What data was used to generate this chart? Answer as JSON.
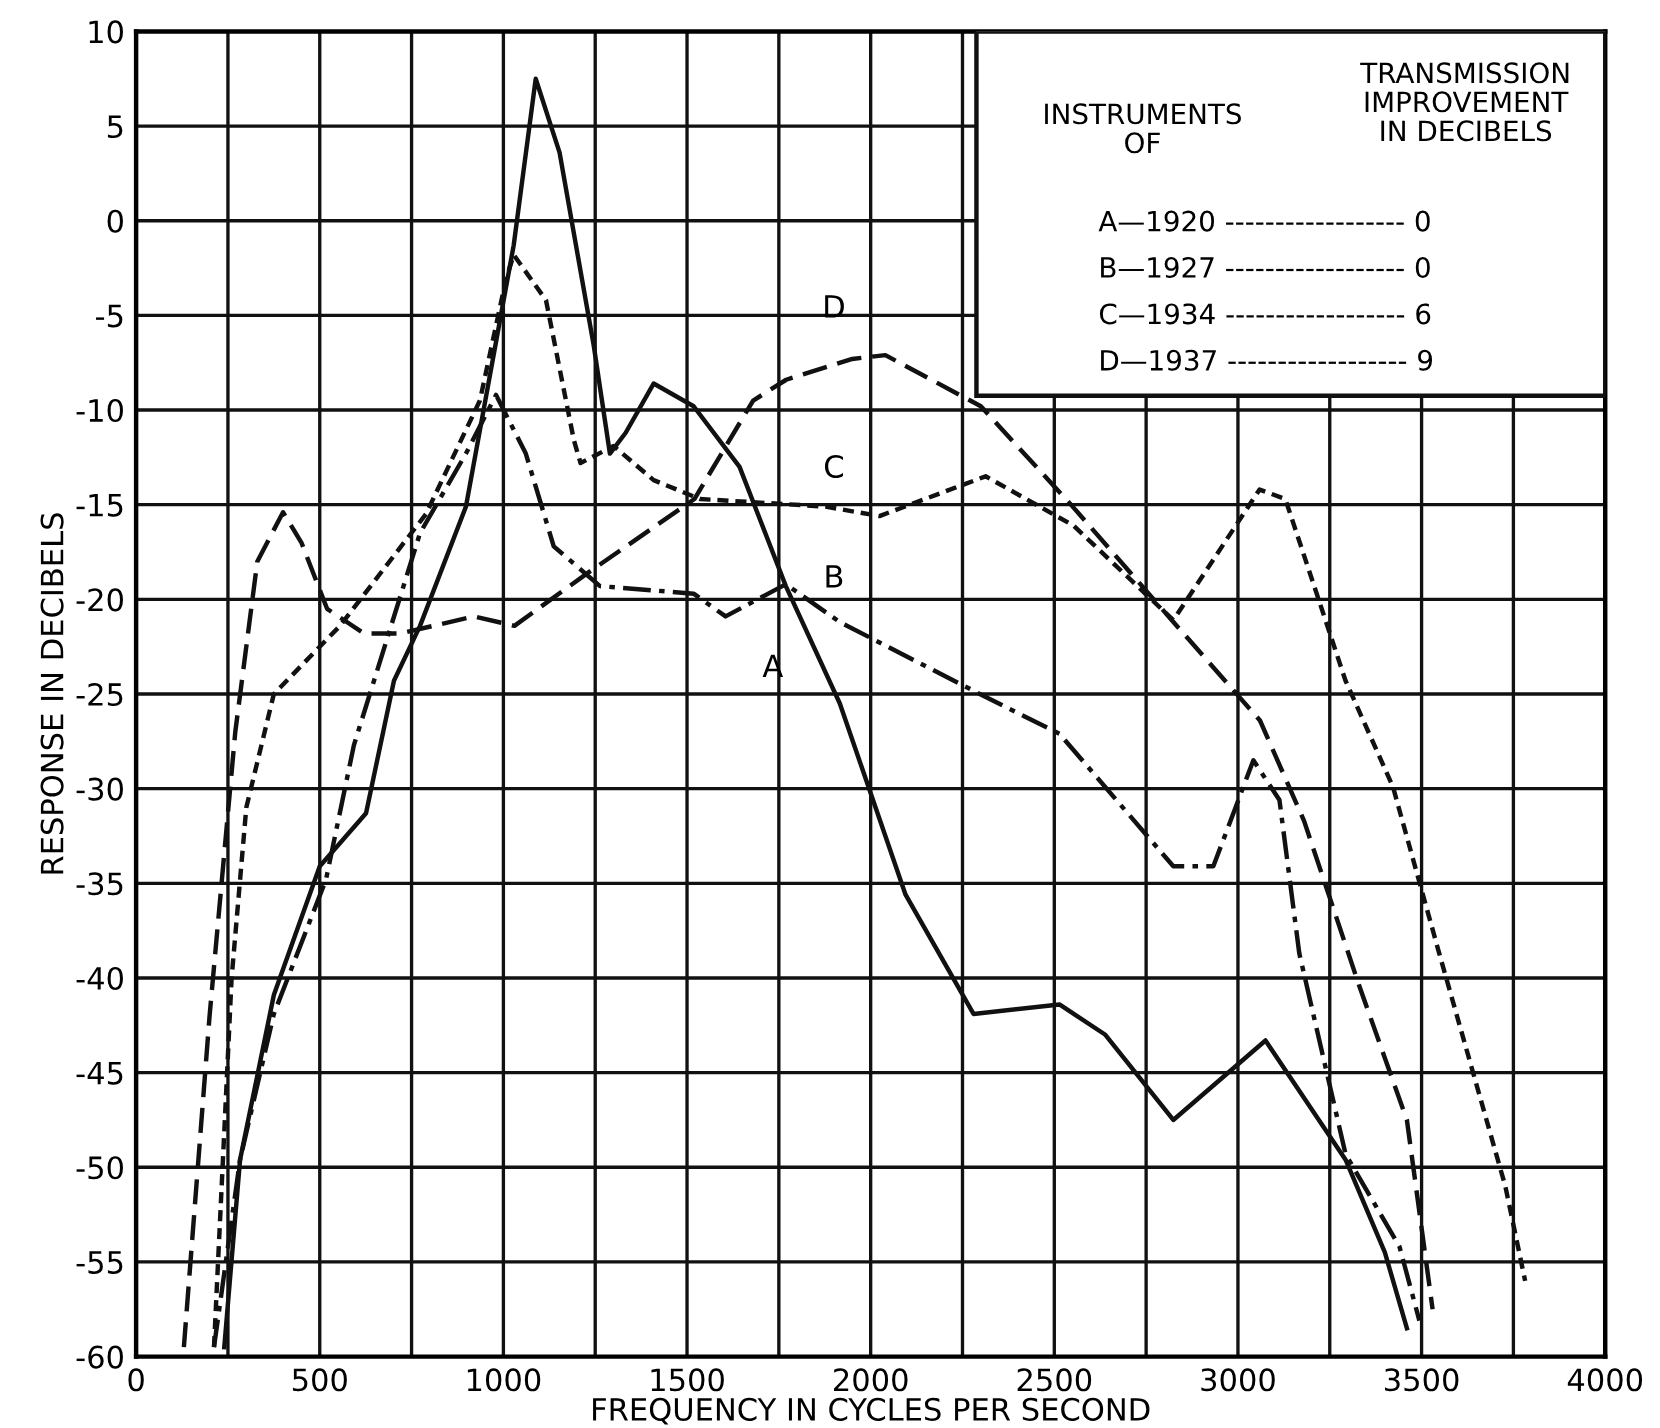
{
  "chart_data": {
    "type": "line",
    "xlabel": "FREQUENCY IN CYCLES PER SECOND",
    "ylabel": "RESPONSE IN DECIBELS",
    "xlim": [
      0,
      4000
    ],
    "ylim": [
      -60,
      10
    ],
    "xticks": [
      0,
      {
        "value": 250,
        "label": null
      },
      500,
      {
        "value": 750,
        "label": null
      },
      1000,
      {
        "value": 1250,
        "label": null
      },
      1500,
      {
        "value": 1750,
        "label": null
      },
      2000,
      {
        "value": 2250,
        "label": null
      },
      2500,
      {
        "value": 2750,
        "label": null
      },
      3000,
      {
        "value": 3250,
        "label": null
      },
      3500,
      {
        "value": 3750,
        "label": null
      },
      4000
    ],
    "yticks": [
      -60,
      -55,
      -50,
      -45,
      -40,
      -35,
      -30,
      -25,
      -20,
      -15,
      -10,
      -5,
      0,
      5,
      10
    ],
    "grid": true,
    "marker": "none",
    "legend": false,
    "series": [
      {
        "name": "A",
        "color": "#111111",
        "line_style": "solid",
        "x": [
          240,
          283,
          375,
          500,
          626,
          702,
          773,
          898,
          1028,
          1088,
          1153,
          1246,
          1290,
          1333,
          1409,
          1518,
          1643,
          1769,
          1916,
          2095,
          2280,
          2514,
          2639,
          2824,
          3075,
          3293,
          3400,
          3460
        ],
        "values": [
          -59.5,
          -49.6,
          -40.9,
          -34.1,
          -31.3,
          -24.3,
          -21.4,
          -15.1,
          -1.3,
          7.5,
          3.6,
          -6.6,
          -12.3,
          -11.2,
          -8.6,
          -9.8,
          -13,
          -19.3,
          -25.5,
          -35.6,
          -41.9,
          -41.4,
          -43,
          -47.5,
          -43.3,
          -49.6,
          -54.5,
          -58.5
        ]
      },
      {
        "name": "B",
        "color": "#111111",
        "line_style": "dashed",
        "x": [
          212,
          283,
          375,
          517,
          593,
          773,
          898,
          980,
          1061,
          1137,
          1263,
          1518,
          1605,
          1769,
          1916,
          2297,
          2514,
          2824,
          2933,
          3042,
          3113,
          3167,
          3293,
          3440,
          3494
        ],
        "values": [
          -59.5,
          -49.6,
          -41.9,
          -34.8,
          -27.7,
          -16.5,
          -12.3,
          -9.2,
          -12.3,
          -17.2,
          -19.3,
          -19.7,
          -20.9,
          -19.2,
          -21.2,
          -25,
          -27.1,
          -34.1,
          -34.1,
          -28.5,
          -30.6,
          -38.7,
          -49.3,
          -54.2,
          -58.1
        ]
      },
      {
        "name": "C",
        "color": "#111111",
        "line_style": "dotted",
        "x": [
          212,
          260,
          300,
          375,
          555,
          789,
          936,
          1007,
          1028,
          1116,
          1192,
          1210,
          1300,
          1409,
          1535,
          1877,
          2024,
          2313,
          2552,
          2824,
          3059,
          3129,
          3293,
          3422,
          3548,
          3728,
          3782
        ],
        "values": [
          -59.5,
          -40,
          -31,
          -25,
          -21.4,
          -15.5,
          -9.5,
          -3.1,
          -1.8,
          -4.2,
          -11.6,
          -12.8,
          -11.9,
          -13.7,
          -14.7,
          -15.1,
          -15.6,
          -13.5,
          -16.1,
          -21.1,
          -14.2,
          -14.7,
          -24.3,
          -29.9,
          -38.7,
          -51,
          -56
        ]
      },
      {
        "name": "D",
        "color": "#111111",
        "line_style": "dashed",
        "x": [
          130,
          200,
          270,
          330,
          400,
          450,
          520,
          620,
          720,
          920,
          1030,
          1230,
          1520,
          1680,
          1770,
          1950,
          2040,
          2300,
          2550,
          2820,
          3060,
          3180,
          3330,
          3460,
          3530
        ],
        "values": [
          -59.5,
          -42,
          -27,
          -18,
          -15.4,
          -17,
          -20.5,
          -21.8,
          -21.8,
          -20.9,
          -21.4,
          -18.6,
          -14.7,
          -9.5,
          -8.4,
          -7.3,
          -7.1,
          -9.8,
          -15.1,
          -21.1,
          -26.4,
          -31.7,
          -40.4,
          -47.5,
          -57.5
        ]
      }
    ],
    "annotations": [
      "INSTRUMENTS\nOF",
      "TRANSMISSION\nIMPROVEMENT\nIN DECIBELS",
      "A—1920 ------------------ 0",
      "B—1927 ------------------ 0",
      "C—1934 ------------------ 6",
      "D—1937 ------------------ 9"
    ]
  }
}
